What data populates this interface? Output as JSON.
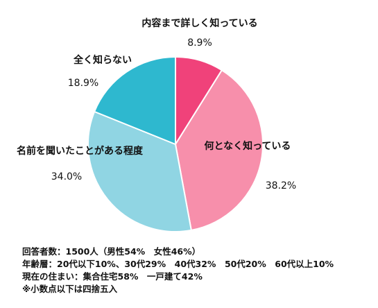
{
  "chart_data": {
    "type": "pie",
    "categories": [
      "内容まで詳しく知っている",
      "何となく知っている",
      "名前を聞いたことがある程度",
      "全く知らない"
    ],
    "values": [
      8.9,
      38.2,
      34.0,
      18.9
    ],
    "value_labels": [
      "8.9%",
      "38.2%",
      "34.0%",
      "18.9%"
    ],
    "colors": [
      "#f0427a",
      "#f78fab",
      "#90d5e3",
      "#2eb8cf"
    ],
    "start": "12 o'clock",
    "direction": "clockwise",
    "legend": "none (labels placed beside slices)"
  },
  "notes": [
    "回答者数：1500人（男性54%　女性46%）",
    "年齢層：20代以下10%、30代29%　40代32%　50代20%　60代以上10%",
    "現在の住まい：集合住宅58%　一戸建て42%",
    "※小数点以下は四捨五入"
  ]
}
